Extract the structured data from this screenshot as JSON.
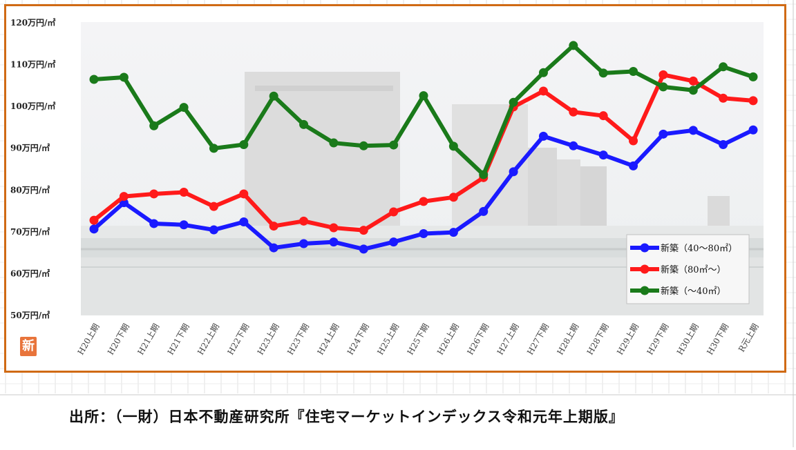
{
  "chart_data": {
    "type": "line",
    "categories": [
      "H20上期",
      "H20下期",
      "H21上期",
      "H21下期",
      "H22上期",
      "H22下期",
      "H23上期",
      "H23下期",
      "H24上期",
      "H24下期",
      "H25上期",
      "H25下期",
      "H26上期",
      "H26下期",
      "H27上期",
      "H27下期",
      "H28上期",
      "H28下期",
      "H29上期",
      "H29下期",
      "H30上期",
      "H30下期",
      "R元上期"
    ],
    "y_ticks": [
      "50万円/㎡",
      "60万円/㎡",
      "70万円/㎡",
      "80万円/㎡",
      "90万円/㎡",
      "100万円/㎡",
      "110万円/㎡",
      "120万円/㎡"
    ],
    "ylim": [
      50,
      120
    ],
    "grid": false,
    "legend_position": "bottom-right",
    "series": [
      {
        "name": "新築（40～80㎡）",
        "color": "#1a1aff",
        "values": [
          70.5,
          76.8,
          71.8,
          71.5,
          70.3,
          72.2,
          66,
          67,
          67.4,
          65.7,
          67.4,
          69.4,
          69.7,
          74.7,
          84.2,
          92.7,
          90.4,
          88.2,
          85.6,
          93.2,
          94.1,
          90.7,
          94.2
        ]
      },
      {
        "name": "新築（80㎡～）",
        "color": "#ff1a1a",
        "values": [
          72.6,
          78.3,
          78.9,
          79.3,
          75.9,
          78.9,
          71.2,
          72.4,
          70.8,
          70.2,
          74.6,
          77.1,
          78.1,
          82.8,
          99.7,
          103.5,
          98.5,
          97.6,
          91.6,
          107.4,
          105.9,
          101.8,
          101.2
        ]
      },
      {
        "name": "新築（～40㎡）",
        "color": "#1a7a1a",
        "values": [
          106.3,
          106.8,
          95.2,
          99.6,
          89.8,
          90.7,
          102.3,
          95.5,
          91.1,
          90.4,
          90.6,
          102.4,
          90.3,
          83.5,
          100.8,
          107.9,
          114.4,
          107.8,
          108.2,
          104.5,
          103.7,
          109.3,
          106.9
        ]
      }
    ]
  },
  "badge": "新",
  "source_text": "出所：（一財）日本不動産研究所『住宅マーケットインデックス令和元年上期版』"
}
